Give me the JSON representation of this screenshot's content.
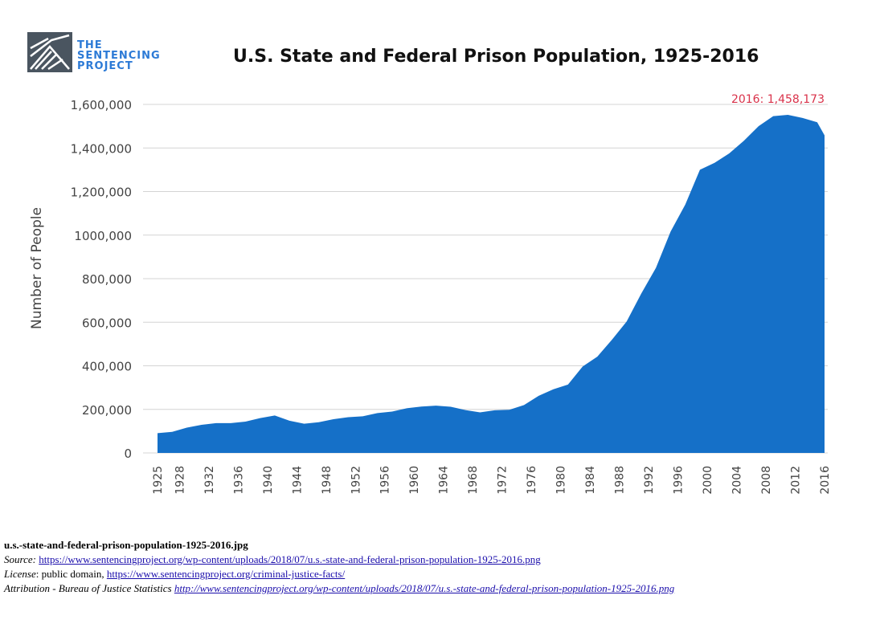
{
  "logo": {
    "line1": "THE",
    "line2": "SENTENCING",
    "line3": "PROJECT"
  },
  "chart_data": {
    "type": "area",
    "title": "U.S. State and Federal Prison Population, 1925-2016",
    "ylabel": "Number of People",
    "xlabel": "",
    "ylim": [
      0,
      1600000
    ],
    "yticks": [
      0,
      200000,
      400000,
      600000,
      800000,
      1000000,
      1200000,
      1400000,
      1600000
    ],
    "ytick_labels": [
      "0",
      "200,000",
      "400,000",
      "600,000",
      "800,000",
      "1000,000",
      "1,200,000",
      "1,400,000",
      "1,600,000"
    ],
    "xticks": [
      1925,
      1928,
      1932,
      1936,
      1940,
      1944,
      1948,
      1952,
      1956,
      1960,
      1964,
      1968,
      1972,
      1976,
      1980,
      1984,
      1988,
      1992,
      1996,
      2000,
      2004,
      2008,
      2012,
      2016
    ],
    "grid": true,
    "color": "#1570c8",
    "annotation": {
      "text": "2016: 1,458,173",
      "color": "#d9324a"
    },
    "series": [
      {
        "x": [
          1925,
          1927,
          1929,
          1931,
          1933,
          1935,
          1937,
          1939,
          1941,
          1943,
          1945,
          1947,
          1949,
          1951,
          1953,
          1955,
          1957,
          1959,
          1961,
          1963,
          1965,
          1967,
          1969,
          1971,
          1973,
          1975,
          1977,
          1979,
          1981,
          1983,
          1985,
          1987,
          1989,
          1991,
          1993,
          1995,
          1997,
          1999,
          2001,
          2003,
          2005,
          2007,
          2009,
          2011,
          2013,
          2015,
          2016
        ],
        "values": [
          91000,
          97000,
          116000,
          129000,
          137000,
          137000,
          144000,
          160000,
          172000,
          148000,
          134000,
          141000,
          155000,
          164000,
          168000,
          183000,
          190000,
          205000,
          213000,
          217000,
          212000,
          197000,
          186000,
          196000,
          198000,
          220000,
          262000,
          292000,
          314000,
          397000,
          442000,
          520000,
          603000,
          732000,
          850000,
          1016000,
          1140000,
          1300000,
          1332000,
          1375000,
          1433000,
          1500000,
          1546000,
          1552000,
          1538000,
          1518000,
          1458173
        ]
      }
    ]
  },
  "caption": {
    "filename": "u.s.-state-and-federal-prison-population-1925-2016.jpg",
    "source_label": "Source",
    "source_url": "https://www.sentencingproject.org/wp-content/uploads/2018/07/u.s.-state-and-federal-prison-population-1925-2016.png",
    "license_label": "License",
    "license_text": ": public domain, ",
    "license_url": "https://www.sentencingproject.org/criminal-justice-facts/",
    "attribution_text": "Attribution - Bureau of Justice Statistics ",
    "attribution_url": "http://www.sentencingproject.org/wp-content/uploads/2018/07/u.s.-state-and-federal-prison-population-1925-2016.png"
  }
}
